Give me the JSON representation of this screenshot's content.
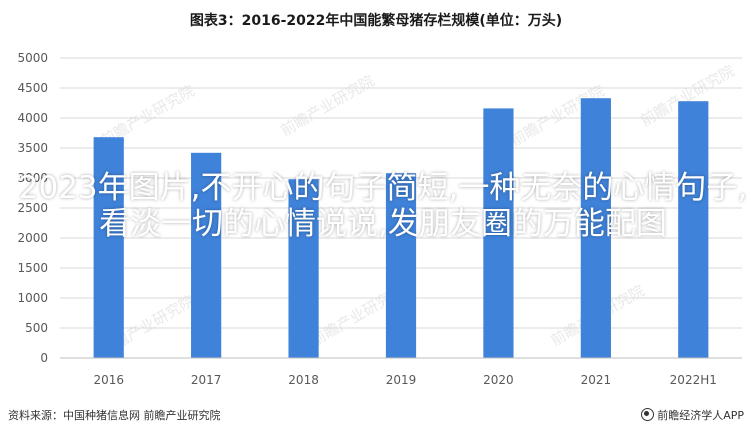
{
  "chart_data": {
    "type": "bar",
    "title": "图表3：2016-2022年中国能繁母猪存栏规模(单位：万头)",
    "categories": [
      "2016",
      "2017",
      "2018",
      "2019",
      "2020",
      "2021",
      "2022H1"
    ],
    "values": [
      3680,
      3420,
      2980,
      3080,
      4160,
      4330,
      4280
    ],
    "ylim": [
      0,
      5000
    ],
    "yticks": [
      "0",
      "500",
      "1000",
      "1500",
      "2000",
      "2500",
      "3000",
      "3500",
      "4000",
      "4500",
      "5000"
    ],
    "grid": true,
    "bar_color": "#3f82d9",
    "xlabel": "",
    "ylabel": ""
  },
  "overlay_text": "2023年图片,不开心的句子简短,一种无奈的心情句子,看淡一切的心情说说,发朋友圈的万能配图",
  "watermark": "前瞻产业研究院",
  "source": "资料来源：中国种猪信息网 前瞻产业研究院",
  "brand": "前瞻经济学人APP"
}
